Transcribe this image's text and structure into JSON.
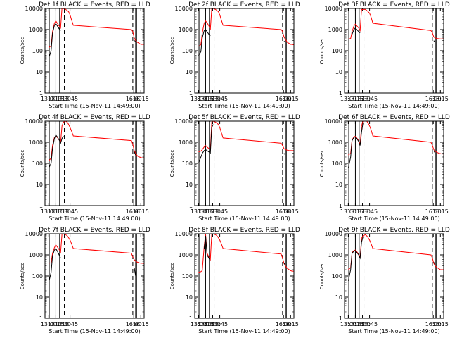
{
  "figure": {
    "xlabel": "Start Time (15-Nov-11 14:49:00)",
    "ylabel": "Counts/sec",
    "x_tick_labels": [
      "13:00",
      "13:15",
      "13:30",
      "13:45",
      "16:00",
      "16:15"
    ],
    "y_tick_labels": [
      "1",
      "10",
      "100",
      "1000",
      "10000"
    ],
    "colors": {
      "events": "#000000",
      "lld": "#ff0000"
    }
  },
  "chart_data": [
    {
      "type": "line",
      "title": "Det 1f BLACK = Events, RED = LLD",
      "x": [
        "13:00",
        "13:05",
        "13:08",
        "13:12",
        "13:15",
        "13:18",
        "13:22",
        "13:25",
        "13:28",
        "13:31",
        "13:36",
        "13:39",
        "13:42",
        "13:45",
        "13:48",
        "13:52",
        "15:55",
        "15:58",
        "16:01",
        "16:04",
        "16:08",
        "16:12",
        "16:15",
        "16:18",
        "16:22"
      ],
      "series": [
        {
          "name": "Events",
          "values": [
            45,
            100,
            650,
            1600,
            1900,
            1500,
            1100,
            900,
            null,
            null,
            null,
            null,
            null,
            null,
            null,
            null,
            null,
            null,
            300,
            280,
            null,
            null,
            null,
            null,
            null
          ]
        },
        {
          "name": "LLD",
          "values": [
            140,
            170,
            800,
            2000,
            2600,
            2000,
            1500,
            1200,
            11000,
            10000,
            9000,
            8000,
            7000,
            5000,
            3000,
            1600,
            1000,
            800,
            400,
            300,
            250,
            220,
            200,
            200,
            200
          ]
        }
      ],
      "vlines_solid": [
        "13:01",
        "13:15",
        "13:23",
        "16:04",
        "16:06"
      ],
      "vlines_dashed": [
        "13:33",
        "15:58"
      ],
      "yscale": "log",
      "ylim": [
        1,
        10000
      ],
      "xlim": [
        "12:52",
        "16:22"
      ]
    },
    {
      "type": "line",
      "title": "Det 2f BLACK = Events, RED = LLD",
      "x": [
        "13:00",
        "13:05",
        "13:08",
        "13:12",
        "13:15",
        "13:18",
        "13:22",
        "13:25",
        "13:28",
        "13:31",
        "13:36",
        "13:39",
        "13:42",
        "13:45",
        "13:48",
        "13:52",
        "15:55",
        "15:58",
        "16:01",
        "16:04",
        "16:08",
        "16:12",
        "16:15",
        "16:18",
        "16:22"
      ],
      "series": [
        {
          "name": "Events",
          "values": [
            60,
            90,
            400,
            900,
            1000,
            800,
            600,
            500,
            null,
            null,
            null,
            null,
            null,
            null,
            null,
            null,
            null,
            null,
            280,
            260,
            null,
            null,
            null,
            null,
            null
          ]
        },
        {
          "name": "LLD",
          "values": [
            160,
            190,
            700,
            2000,
            2600,
            2100,
            1500,
            1000,
            10000,
            10000,
            9000,
            8000,
            7000,
            5000,
            3000,
            1600,
            1000,
            800,
            450,
            350,
            250,
            220,
            200,
            200,
            190
          ]
        }
      ],
      "vlines_solid": [
        "13:01",
        "13:15",
        "13:23",
        "16:04",
        "16:06"
      ],
      "vlines_dashed": [
        "13:33",
        "15:58"
      ],
      "yscale": "log",
      "ylim": [
        1,
        10000
      ],
      "xlim": [
        "12:52",
        "16:22"
      ]
    },
    {
      "type": "line",
      "title": "Det 3f BLACK = Events, RED = LLD",
      "x": [
        "13:00",
        "13:05",
        "13:08",
        "13:12",
        "13:15",
        "13:18",
        "13:22",
        "13:25",
        "13:28",
        "13:31",
        "13:36",
        "13:39",
        "13:42",
        "13:45",
        "13:48",
        "13:52",
        "15:55",
        "15:58",
        "16:01",
        "16:04",
        "16:08",
        "16:12",
        "16:15",
        "16:18",
        "16:22"
      ],
      "series": [
        {
          "name": "Events",
          "values": [
            null,
            null,
            600,
            1000,
            1200,
            1000,
            800,
            700,
            null,
            null,
            null,
            null,
            null,
            null,
            null,
            null,
            null,
            null,
            300,
            250,
            null,
            null,
            null,
            null,
            null
          ]
        },
        {
          "name": "LLD",
          "values": [
            350,
            380,
            800,
            1500,
            1800,
            1500,
            1200,
            900,
            9000,
            9000,
            9000,
            8000,
            7000,
            6000,
            4000,
            2000,
            900,
            700,
            450,
            400,
            380,
            370,
            360,
            360,
            360
          ]
        }
      ],
      "vlines_solid": [
        "13:01",
        "13:15",
        "13:23",
        "16:04",
        "16:06"
      ],
      "vlines_dashed": [
        "13:33",
        "15:58"
      ],
      "yscale": "log",
      "ylim": [
        1,
        10000
      ],
      "xlim": [
        "12:52",
        "16:22"
      ]
    },
    {
      "type": "line",
      "title": "Det 4f BLACK = Events, RED = LLD",
      "x": [
        "13:00",
        "13:05",
        "13:08",
        "13:12",
        "13:15",
        "13:18",
        "13:22",
        "13:25",
        "13:28",
        "13:31",
        "13:36",
        "13:39",
        "13:42",
        "13:45",
        "13:48",
        "13:52",
        "15:55",
        "15:58",
        "16:01",
        "16:04",
        "16:08",
        "16:12",
        "16:15",
        "16:18",
        "16:22"
      ],
      "series": [
        {
          "name": "Events",
          "values": [
            60,
            100,
            500,
            1500,
            2200,
            1800,
            1300,
            900,
            1500,
            2000,
            null,
            null,
            null,
            null,
            null,
            null,
            null,
            null,
            350,
            250,
            null,
            null,
            null,
            null,
            null
          ]
        },
        {
          "name": "LLD",
          "values": [
            130,
            180,
            700,
            1700,
            2000,
            1700,
            1300,
            1000,
            6000,
            9000,
            10000,
            9000,
            7000,
            5000,
            3500,
            2000,
            1200,
            800,
            400,
            300,
            220,
            200,
            190,
            180,
            180
          ]
        }
      ],
      "vlines_solid": [
        "13:01",
        "13:15",
        "13:23",
        "16:04",
        "16:06"
      ],
      "vlines_dashed": [
        "13:33",
        "15:58"
      ],
      "yscale": "log",
      "ylim": [
        1,
        10000
      ],
      "xlim": [
        "12:52",
        "16:22"
      ]
    },
    {
      "type": "line",
      "title": "Det 5f BLACK = Events, RED = LLD",
      "x": [
        "13:00",
        "13:05",
        "13:08",
        "13:12",
        "13:15",
        "13:18",
        "13:22",
        "13:25",
        "13:28",
        "13:31",
        "13:36",
        "13:39",
        "13:42",
        "13:45",
        "13:48",
        "13:52",
        "15:55",
        "15:58",
        "16:01",
        "16:04",
        "16:08",
        "16:12",
        "16:15",
        "16:18",
        "16:22"
      ],
      "series": [
        {
          "name": "Events",
          "values": [
            100,
            200,
            300,
            400,
            450,
            400,
            350,
            300,
            5000,
            7000,
            null,
            null,
            null,
            null,
            null,
            null,
            null,
            null,
            300,
            250,
            null,
            null,
            null,
            null,
            null
          ]
        },
        {
          "name": "LLD",
          "values": [
            350,
            380,
            450,
            600,
            700,
            600,
            500,
            450,
            9000,
            10000,
            9000,
            8000,
            7000,
            5000,
            3000,
            1600,
            900,
            700,
            500,
            450,
            420,
            400,
            400,
            400,
            400
          ]
        }
      ],
      "vlines_solid": [
        "13:01",
        "13:15",
        "13:23",
        "16:04",
        "16:06"
      ],
      "vlines_dashed": [
        "13:33",
        "15:58"
      ],
      "yscale": "log",
      "ylim": [
        1,
        10000
      ],
      "xlim": [
        "12:52",
        "16:22"
      ]
    },
    {
      "type": "line",
      "title": "Det 6f BLACK = Events, RED = LLD",
      "x": [
        "13:00",
        "13:05",
        "13:08",
        "13:12",
        "13:15",
        "13:18",
        "13:22",
        "13:25",
        "13:28",
        "13:31",
        "13:36",
        "13:39",
        "13:42",
        "13:45",
        "13:48",
        "13:52",
        "15:55",
        "15:58",
        "16:01",
        "16:04",
        "16:08",
        "16:12",
        "16:15",
        "16:18",
        "16:22"
      ],
      "series": [
        {
          "name": "Events",
          "values": [
            60,
            200,
            1200,
            1700,
            1800,
            1500,
            1100,
            700,
            3000,
            8000,
            null,
            null,
            null,
            null,
            null,
            null,
            null,
            null,
            400,
            300,
            null,
            null,
            null,
            null,
            null
          ]
        },
        {
          "name": "LLD",
          "values": [
            250,
            300,
            1300,
            1800,
            1900,
            1600,
            1200,
            800,
            6000,
            10000,
            10000,
            10000,
            8000,
            6000,
            4000,
            2000,
            1000,
            700,
            450,
            380,
            330,
            300,
            290,
            280,
            280
          ]
        }
      ],
      "vlines_solid": [
        "13:01",
        "13:15",
        "13:23",
        "16:04",
        "16:06"
      ],
      "vlines_dashed": [
        "13:33",
        "15:58"
      ],
      "yscale": "log",
      "ylim": [
        1,
        10000
      ],
      "xlim": [
        "12:52",
        "16:22"
      ]
    },
    {
      "type": "line",
      "title": "Det 7f BLACK = Events, RED = LLD",
      "x": [
        "13:00",
        "13:05",
        "13:08",
        "13:12",
        "13:15",
        "13:18",
        "13:22",
        "13:25",
        "13:28",
        "13:31",
        "13:36",
        "13:39",
        "13:42",
        "13:45",
        "13:48",
        "13:52",
        "15:55",
        "15:58",
        "16:01",
        "16:04",
        "16:08",
        "16:12",
        "16:15",
        "16:18",
        "16:22"
      ],
      "series": [
        {
          "name": "Events",
          "values": [
            50,
            150,
            900,
            1700,
            2000,
            1500,
            1000,
            700,
            null,
            null,
            null,
            null,
            null,
            null,
            null,
            null,
            null,
            null,
            250,
            100,
            null,
            null,
            null,
            null,
            null
          ]
        },
        {
          "name": "LLD",
          "values": [
            400,
            420,
            1200,
            2200,
            3000,
            2400,
            1800,
            1300,
            10000,
            10000,
            9000,
            8000,
            6500,
            5000,
            3500,
            2000,
            1200,
            800,
            600,
            500,
            450,
            420,
            400,
            400,
            390
          ]
        }
      ],
      "vlines_solid": [
        "13:01",
        "13:15",
        "13:23",
        "16:04",
        "16:06"
      ],
      "vlines_dashed": [
        "13:33",
        "15:58"
      ],
      "yscale": "log",
      "ylim": [
        1,
        10000
      ],
      "xlim": [
        "12:52",
        "16:22"
      ]
    },
    {
      "type": "line",
      "title": "Det 8f BLACK = Events, RED = LLD",
      "x": [
        "13:00",
        "13:05",
        "13:08",
        "13:12",
        "13:15",
        "13:18",
        "13:22",
        "13:25",
        "13:28",
        "13:31",
        "13:36",
        "13:39",
        "13:42",
        "13:45",
        "13:48",
        "13:52",
        "15:55",
        "15:58",
        "16:01",
        "16:04",
        "16:08",
        "16:12",
        "16:15",
        "16:18",
        "16:22"
      ],
      "series": [
        {
          "name": "Events",
          "values": [
            null,
            null,
            null,
            2000,
            8000,
            1000,
            700,
            500,
            null,
            null,
            null,
            null,
            null,
            null,
            null,
            null,
            null,
            null,
            400,
            350,
            null,
            null,
            null,
            null,
            null
          ]
        },
        {
          "name": "LLD",
          "values": [
            150,
            160,
            180,
            2500,
            10000,
            1200,
            800,
            600,
            10000,
            10000,
            9000,
            8000,
            6500,
            5000,
            3500,
            2000,
            1100,
            700,
            400,
            300,
            230,
            200,
            180,
            170,
            170
          ]
        }
      ],
      "vlines_solid": [
        "13:01",
        "13:15",
        "13:23",
        "16:04",
        "16:06"
      ],
      "vlines_dashed": [
        "13:33",
        "15:58"
      ],
      "yscale": "log",
      "ylim": [
        1,
        10000
      ],
      "xlim": [
        "12:52",
        "16:22"
      ]
    },
    {
      "type": "line",
      "title": "Det 9f BLACK = Events, RED = LLD",
      "x": [
        "13:00",
        "13:05",
        "13:08",
        "13:12",
        "13:15",
        "13:18",
        "13:22",
        "13:25",
        "13:28",
        "13:31",
        "13:36",
        "13:39",
        "13:42",
        "13:45",
        "13:48",
        "13:52",
        "15:55",
        "15:58",
        "16:01",
        "16:04",
        "16:08",
        "16:12",
        "16:15",
        "16:18",
        "16:22"
      ],
      "series": [
        {
          "name": "Events",
          "values": [
            60,
            200,
            1200,
            1500,
            1600,
            1300,
            1000,
            700,
            4000,
            7000,
            null,
            null,
            null,
            null,
            null,
            null,
            null,
            null,
            450,
            350,
            null,
            null,
            null,
            null,
            null
          ]
        },
        {
          "name": "LLD",
          "values": [
            200,
            250,
            1300,
            1600,
            1700,
            1400,
            1100,
            800,
            6000,
            8000,
            9000,
            8000,
            6500,
            5000,
            3500,
            2000,
            1000,
            700,
            400,
            300,
            250,
            220,
            200,
            200,
            200
          ]
        }
      ],
      "vlines_solid": [
        "13:01",
        "13:15",
        "13:23",
        "16:04",
        "16:06"
      ],
      "vlines_dashed": [
        "13:33",
        "15:58"
      ],
      "yscale": "log",
      "ylim": [
        1,
        10000
      ],
      "xlim": [
        "12:52",
        "16:22"
      ]
    }
  ]
}
